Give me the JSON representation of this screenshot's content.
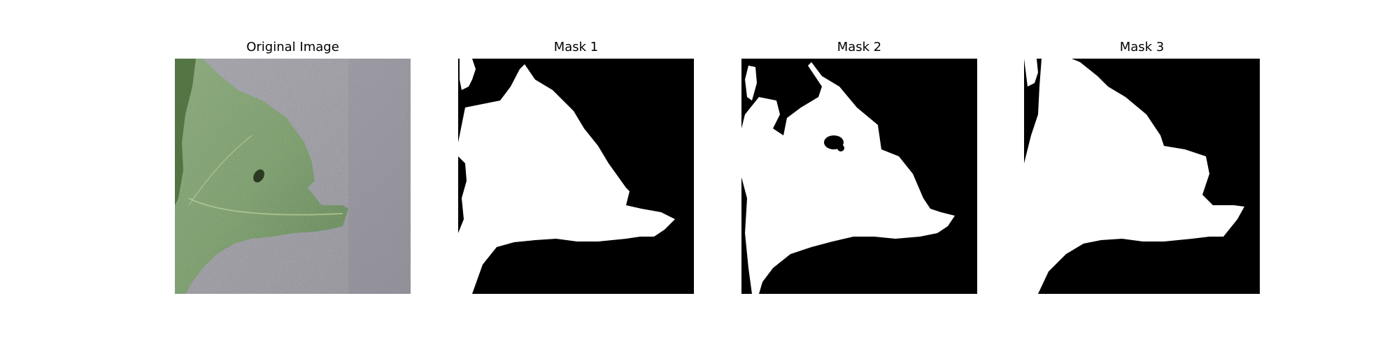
{
  "figure": {
    "panels": [
      {
        "title": "Original Image",
        "kind": "photo",
        "subject": "leaf-photo"
      },
      {
        "title": "Mask 1",
        "kind": "mask"
      },
      {
        "title": "Mask 2",
        "kind": "mask"
      },
      {
        "title": "Mask 3",
        "kind": "mask"
      }
    ]
  },
  "colors": {
    "leaf_dark": "#4a7a35",
    "leaf_light": "#8fb07a",
    "background_gray": "#8e8d98",
    "mask_fg": "#ffffff",
    "mask_bg": "#000000"
  }
}
